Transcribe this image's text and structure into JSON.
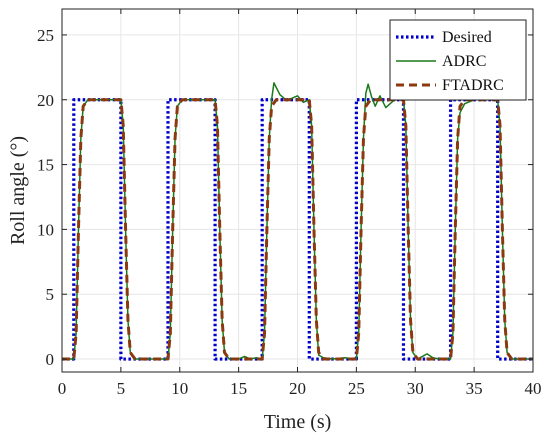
{
  "chart_data": {
    "type": "line",
    "xlabel": "Time (s)",
    "ylabel": "Roll angle (°)",
    "xlim": [
      0,
      40
    ],
    "ylim": [
      -1,
      27
    ],
    "xticks": [
      0,
      5,
      10,
      15,
      20,
      25,
      30,
      35,
      40
    ],
    "yticks": [
      0,
      5,
      10,
      15,
      20,
      25
    ],
    "grid": true,
    "legend_position": "top-right",
    "series": [
      {
        "name": "Desired",
        "color": "#0000cc",
        "style": "dotted",
        "x": [
          0,
          1,
          1,
          5,
          5,
          9,
          9,
          13,
          13,
          17,
          17,
          21,
          21,
          25,
          25,
          29,
          29,
          33,
          33,
          37,
          37,
          40
        ],
        "y": [
          0,
          0,
          20,
          20,
          0,
          0,
          20,
          20,
          0,
          0,
          20,
          20,
          0,
          0,
          20,
          20,
          0,
          0,
          20,
          20,
          0,
          0
        ]
      },
      {
        "name": "ADRC",
        "color": "#1a7a1a",
        "style": "solid",
        "x": [
          0,
          1.0,
          1.2,
          1.4,
          1.6,
          1.8,
          2.2,
          3.0,
          5.0,
          5.2,
          5.4,
          5.6,
          5.8,
          6.2,
          7.0,
          9.0,
          9.2,
          9.4,
          9.6,
          9.8,
          10.2,
          11.0,
          13.0,
          13.2,
          13.4,
          13.6,
          13.8,
          14.2,
          15.0,
          15.5,
          16.0,
          16.5,
          17.0,
          17.2,
          17.4,
          17.6,
          17.8,
          18.0,
          18.5,
          19.0,
          19.5,
          20.0,
          20.5,
          21.0,
          21.2,
          21.4,
          21.6,
          21.8,
          22.2,
          23.0,
          24.0,
          25.0,
          25.2,
          25.4,
          25.6,
          25.8,
          26.0,
          26.3,
          26.6,
          27.0,
          27.5,
          28.0,
          28.5,
          29.0,
          29.2,
          29.4,
          29.6,
          29.8,
          30.2,
          31.0,
          31.5,
          32.0,
          33.0,
          33.2,
          33.4,
          33.6,
          33.8,
          34.2,
          35.0,
          37.0,
          37.2,
          37.4,
          37.6,
          37.8,
          38.2,
          39.0,
          40.0
        ],
        "y": [
          0,
          0,
          2,
          10,
          17,
          19.5,
          20,
          20,
          20,
          18,
          10,
          3,
          0.5,
          0,
          0,
          0,
          2,
          10,
          17,
          19.5,
          20,
          20,
          20,
          18,
          10,
          3,
          0.5,
          0,
          0,
          0.2,
          0,
          0.1,
          0,
          2,
          10,
          17,
          20,
          21.3,
          20.4,
          20,
          20.1,
          20.3,
          19.8,
          20,
          18,
          10,
          3,
          0.3,
          0.1,
          0,
          0.1,
          0,
          2,
          10,
          17,
          20.5,
          21.2,
          20.2,
          19.5,
          20.3,
          19.4,
          19.8,
          20.2,
          20,
          18,
          10,
          3,
          0.5,
          0,
          0.4,
          0.1,
          0,
          0,
          2,
          10,
          17,
          19,
          19.7,
          20,
          20,
          18,
          10,
          3,
          0.5,
          0,
          0,
          0
        ]
      },
      {
        "name": "FTADRC",
        "color": "#8b3a0f",
        "style": "dashed",
        "x": [
          0,
          1.0,
          1.2,
          1.4,
          1.6,
          1.8,
          2.2,
          3.0,
          5.0,
          5.2,
          5.4,
          5.6,
          5.8,
          6.2,
          7.0,
          9.0,
          9.2,
          9.4,
          9.6,
          9.8,
          10.2,
          11.0,
          13.0,
          13.2,
          13.4,
          13.6,
          13.8,
          14.2,
          15.0,
          17.0,
          17.2,
          17.4,
          17.6,
          17.8,
          18.2,
          19.0,
          21.0,
          21.2,
          21.4,
          21.6,
          21.8,
          22.2,
          23.0,
          25.0,
          25.2,
          25.4,
          25.6,
          25.8,
          26.2,
          27.0,
          29.0,
          29.2,
          29.4,
          29.6,
          29.8,
          30.2,
          31.0,
          33.0,
          33.2,
          33.4,
          33.6,
          33.8,
          34.2,
          35.0,
          37.0,
          37.2,
          37.4,
          37.6,
          37.8,
          38.2,
          39.0,
          40.0
        ],
        "y": [
          0,
          0,
          2,
          10,
          17,
          19.5,
          20,
          20,
          20,
          18,
          10,
          3,
          0.5,
          0,
          0,
          0,
          2,
          10,
          17,
          19.5,
          20,
          20,
          20,
          18,
          10,
          3,
          0.5,
          0,
          0,
          0,
          2,
          10,
          17,
          19.5,
          20,
          20,
          20,
          18,
          10,
          3,
          0.5,
          0,
          0,
          0,
          2,
          10,
          17,
          19.5,
          20,
          20,
          20,
          18,
          10,
          3,
          0.5,
          0,
          0,
          0,
          2,
          10,
          17,
          19.5,
          20,
          20,
          20,
          18,
          10,
          3,
          0.5,
          0,
          0,
          0
        ]
      }
    ]
  }
}
